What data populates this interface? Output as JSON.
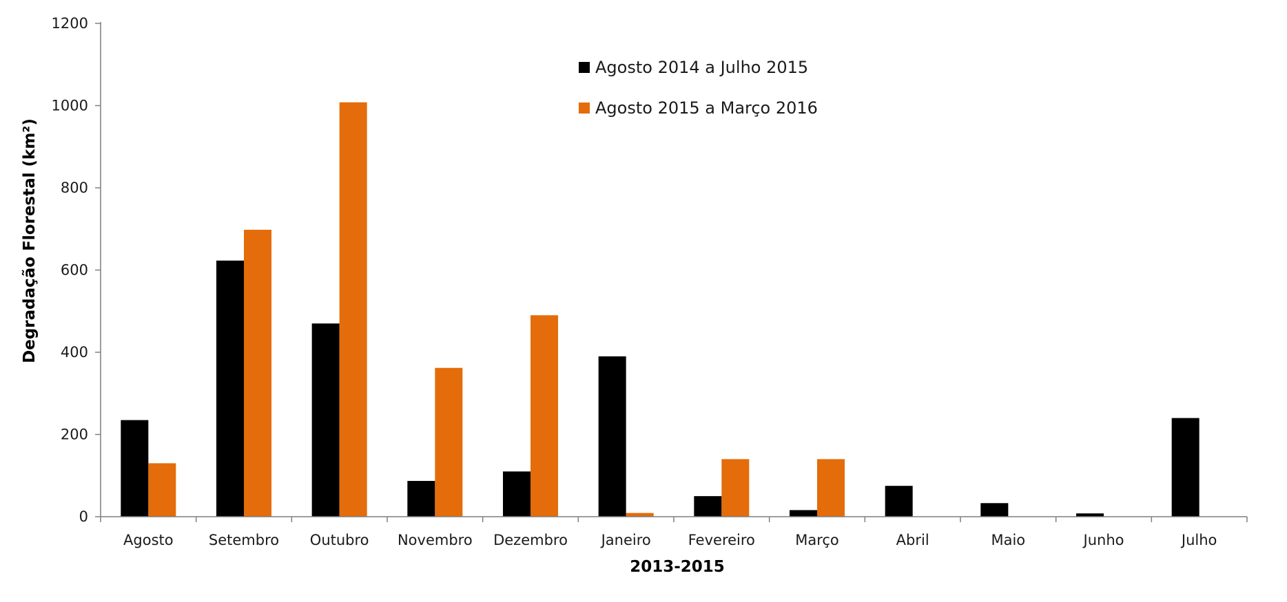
{
  "chart_data": {
    "type": "bar",
    "title": "",
    "xlabel": "2013-2015",
    "ylabel": "Degradação Florestal (km²)",
    "ylim": [
      0,
      1200
    ],
    "yticks": [
      0,
      200,
      400,
      600,
      800,
      1000,
      1200
    ],
    "grid": false,
    "legend_position": "top-center",
    "categories": [
      "Agosto",
      "Setembro",
      "Outubro",
      "Novembro",
      "Dezembro",
      "Janeiro",
      "Fevereiro",
      "Março",
      "Abril",
      "Maio",
      "Junho",
      "Julho"
    ],
    "series": [
      {
        "name": "Agosto 2014 a Julho 2015",
        "color": "#000000",
        "values": [
          235,
          623,
          470,
          87,
          110,
          390,
          50,
          16,
          75,
          33,
          8,
          240
        ]
      },
      {
        "name": "Agosto 2015 a Março 2016",
        "color": "#E46C0A",
        "values": [
          130,
          698,
          1008,
          362,
          490,
          9,
          140,
          140,
          null,
          null,
          null,
          null
        ]
      }
    ]
  }
}
